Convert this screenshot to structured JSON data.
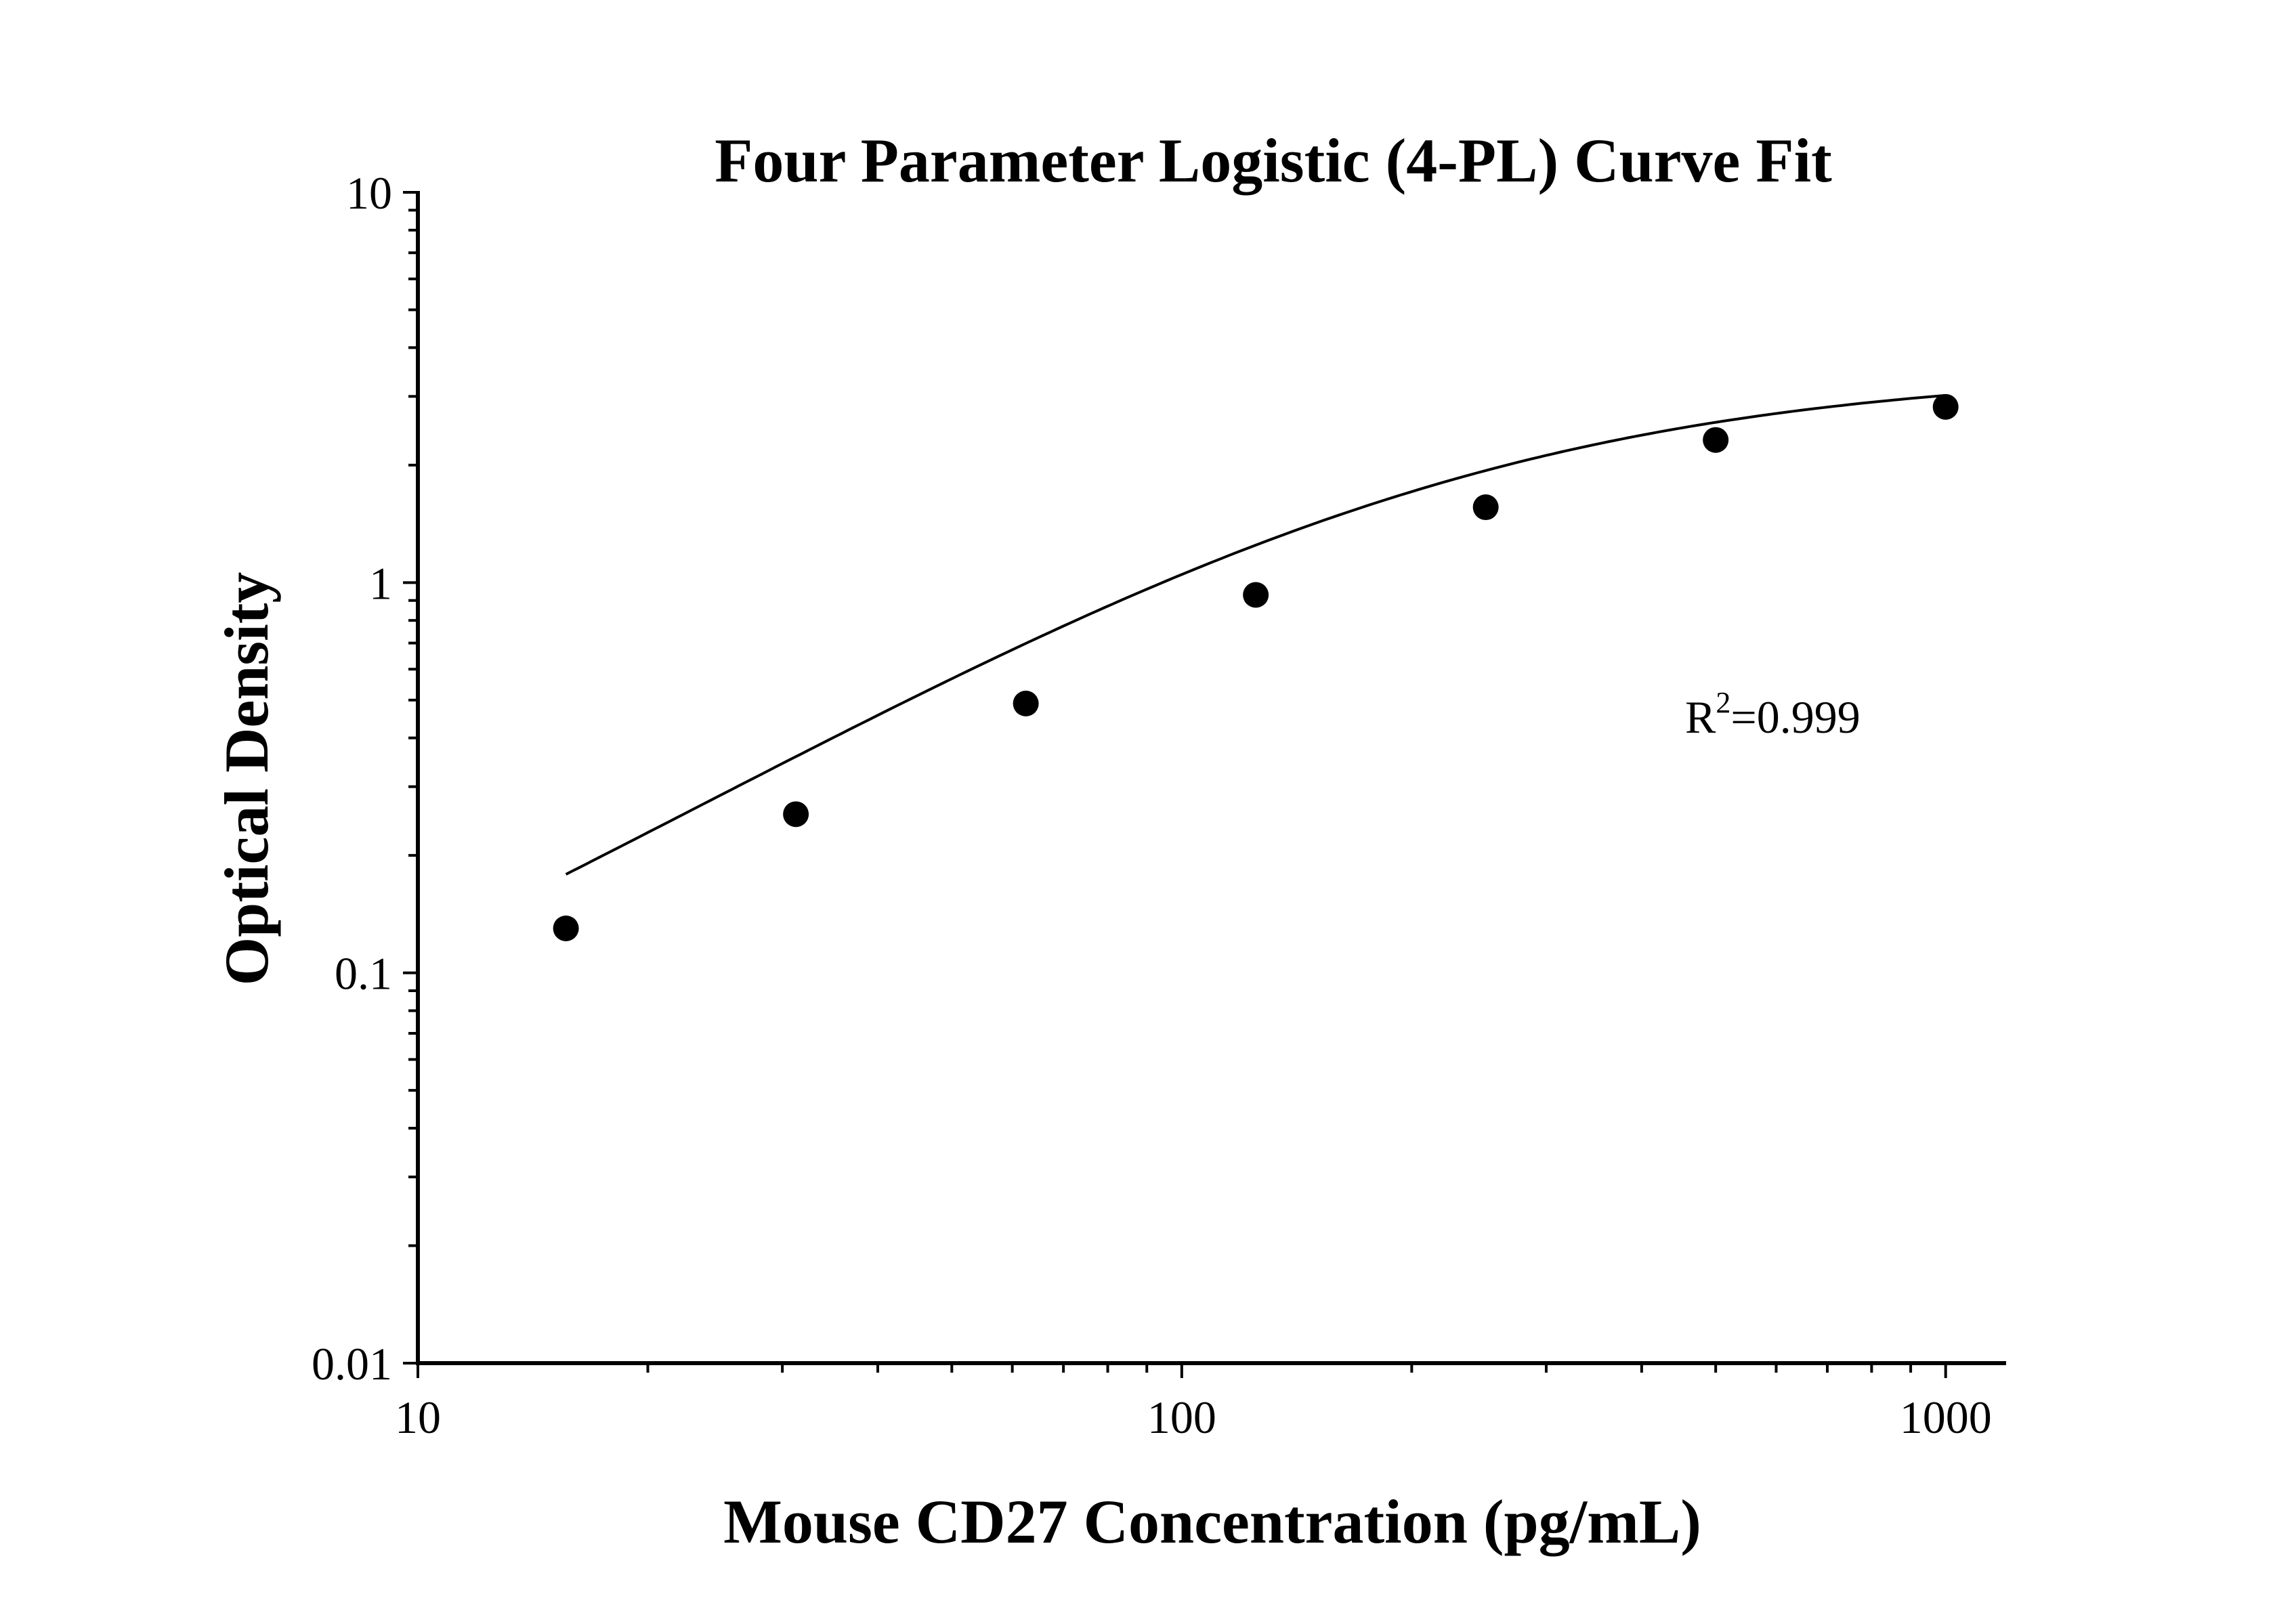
{
  "chart_data": {
    "type": "scatter",
    "title": "Four Parameter Logistic (4-PL) Curve Fit",
    "xlabel": "Mouse CD27 Concentration (pg/mL)",
    "ylabel": "Optical Density",
    "xscale": "log",
    "yscale": "log",
    "xlim": [
      10,
      1200
    ],
    "ylim": [
      0.01,
      10
    ],
    "x_ticks": [
      "10",
      "100",
      "1000"
    ],
    "y_ticks": [
      "0.01",
      "0.1",
      "1",
      "10"
    ],
    "grid": false,
    "series": [
      {
        "points": [
          {
            "x": 15.625,
            "y": 0.13
          },
          {
            "x": 31.25,
            "y": 0.255
          },
          {
            "x": 62.5,
            "y": 0.49
          },
          {
            "x": 125,
            "y": 0.93
          },
          {
            "x": 250,
            "y": 1.56
          },
          {
            "x": 500,
            "y": 2.32
          },
          {
            "x": 1000,
            "y": 2.82
          }
        ]
      }
    ],
    "fit_curve": {
      "model": "4PL",
      "a": 0.02,
      "b": 1.17,
      "c": 210,
      "d": 3.5,
      "x_range": [
        15.625,
        1000
      ]
    },
    "annotation": {
      "base": "R",
      "sup": "2",
      "rest": "=0.999"
    }
  }
}
